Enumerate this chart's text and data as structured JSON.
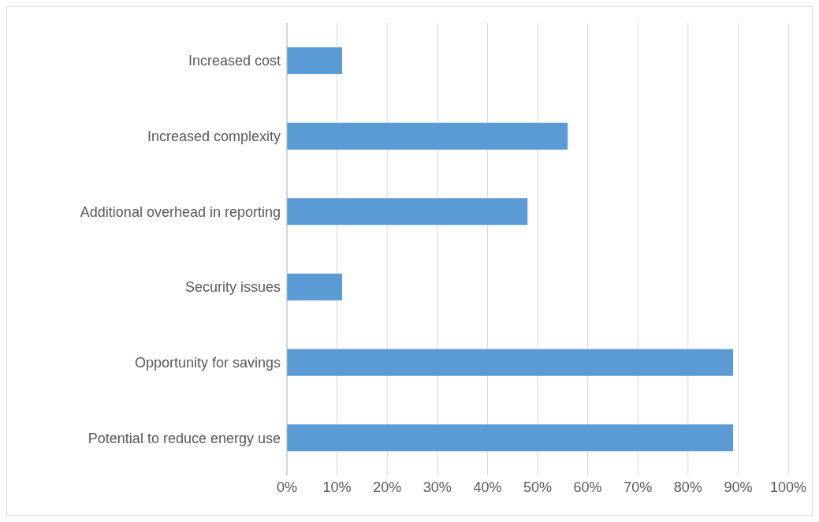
{
  "chart_data": {
    "type": "bar",
    "orientation": "horizontal",
    "categories": [
      "Increased cost",
      "Increased complexity",
      "Additional overhead in reporting",
      "Security issues",
      "Opportunity for savings",
      "Potential to reduce energy use"
    ],
    "values": [
      11,
      56,
      48,
      11,
      89,
      89
    ],
    "color": "#5b9bd5",
    "xlim": [
      0,
      100
    ],
    "xticks": [
      {
        "value": 0,
        "label": "0%"
      },
      {
        "value": 10,
        "label": "10%"
      },
      {
        "value": 20,
        "label": "20%"
      },
      {
        "value": 30,
        "label": "30%"
      },
      {
        "value": 40,
        "label": "40%"
      },
      {
        "value": 50,
        "label": "50%"
      },
      {
        "value": 60,
        "label": "60%"
      },
      {
        "value": 70,
        "label": "70%"
      },
      {
        "value": 80,
        "label": "80%"
      },
      {
        "value": 90,
        "label": "90%"
      },
      {
        "value": 100,
        "label": "100%"
      }
    ],
    "grid": "x"
  }
}
